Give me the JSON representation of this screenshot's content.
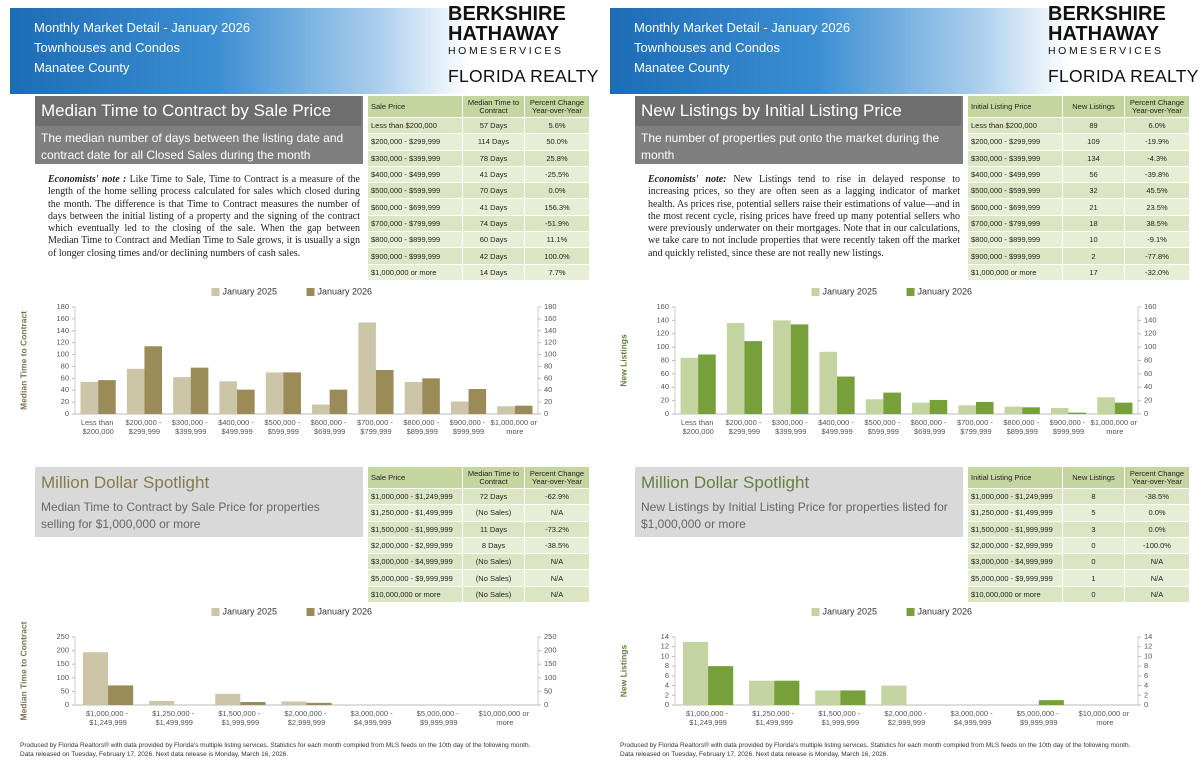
{
  "pages": [
    {
      "header": {
        "lines": [
          "Monthly Market Detail - January 2026",
          "Townhouses and Condos",
          "Manatee County"
        ],
        "logo": [
          "BERKSHIRE",
          "HATHAWAY",
          "HOMESERVICES",
          "FLORIDA REALTY"
        ]
      },
      "section": {
        "title": "Median Time to Contract by Sale Price",
        "subtitle": "The median number of days between the listing date and contract date for all Closed Sales during the month",
        "note_label": "Economists' note :",
        "note": "Like Time to Sale, Time to Contract is a measure of the length of the home selling process calculated for sales which closed during the month. The difference is that Time to Contract measures the number of days between the initial listing of a property and the signing of the contract which eventually led to the closing of the sale. When the gap between Median Time to Contract and Median Time to Sale grows, it is usually a sign of longer closing times and/or declining numbers of cash sales."
      },
      "table": {
        "columns": [
          "Sale Price",
          "Median Time to Contract",
          "Percent Change Year-over-Year"
        ],
        "rows": [
          [
            "Less than $200,000",
            "57 Days",
            "5.6%"
          ],
          [
            "$200,000 - $299,999",
            "114 Days",
            "50.0%"
          ],
          [
            "$300,000 - $399,999",
            "78 Days",
            "25.8%"
          ],
          [
            "$400,000 - $499,999",
            "41 Days",
            "-25.5%"
          ],
          [
            "$500,000 - $599,999",
            "70 Days",
            "0.0%"
          ],
          [
            "$600,000 - $699,999",
            "41 Days",
            "156.3%"
          ],
          [
            "$700,000 - $799,999",
            "74 Days",
            "-51.9%"
          ],
          [
            "$800,000 - $899,999",
            "60 Days",
            "11.1%"
          ],
          [
            "$900,000 - $999,999",
            "42 Days",
            "100.0%"
          ],
          [
            "$1,000,000 or more",
            "14 Days",
            "7.7%"
          ]
        ]
      },
      "spotlight": {
        "title": "Million Dollar Spotlight",
        "subtitle": "Median Time to Contract by Sale Price for properties selling for $1,000,000 or more"
      },
      "spotlight_table": {
        "columns": [
          "Sale Price",
          "Median Time to Contract",
          "Percent Change Year-over-Year"
        ],
        "rows": [
          [
            "$1,000,000 - $1,249,999",
            "72 Days",
            "-62.9%"
          ],
          [
            "$1,250,000 - $1,499,999",
            "(No Sales)",
            "N/A"
          ],
          [
            "$1,500,000 - $1,999,999",
            "11 Days",
            "-73.2%"
          ],
          [
            "$2,000,000 - $2,999,999",
            "8 Days",
            "-38.5%"
          ],
          [
            "$3,000,000 - $4,999,999",
            "(No Sales)",
            "N/A"
          ],
          [
            "$5,000,000 - $9,999,999",
            "(No Sales)",
            "N/A"
          ],
          [
            "$10,000,000 or more",
            "(No Sales)",
            "N/A"
          ]
        ]
      },
      "footer": [
        "Produced by Florida Realtors® with data provided by Florida's multiple listing services. Statistics for each month compiled from MLS feeds on the 10th day of the following month.",
        "Data released on Tuesday, February 17, 2026. Next data release is Monday, March 16, 2026."
      ]
    },
    {
      "header": {
        "lines": [
          "Monthly Market Detail - January 2026",
          "Townhouses and Condos",
          "Manatee County"
        ],
        "logo": [
          "BERKSHIRE",
          "HATHAWAY",
          "HOMESERVICES",
          "FLORIDA REALTY"
        ]
      },
      "section": {
        "title": "New Listings by Initial Listing Price",
        "subtitle": "The number of properties put onto the market during the month",
        "note_label": "Economists' note:",
        "note": "New Listings tend to rise in delayed response to increasing prices, so they are often seen as a lagging indicator of market health. As prices rise, potential sellers raise their estimations of value—and in the most recent cycle, rising prices have freed up many potential sellers who were previously underwater on their mortgages. Note that in our calculations, we take care to not include properties that were recently taken off the market and quickly relisted, since these are not really new listings."
      },
      "table": {
        "columns": [
          "Initial Listing Price",
          "New Listings",
          "Percent Change Year-over-Year"
        ],
        "rows": [
          [
            "Less than $200,000",
            "89",
            "6.0%"
          ],
          [
            "$200,000 - $299,999",
            "109",
            "-19.9%"
          ],
          [
            "$300,000 - $399,999",
            "134",
            "-4.3%"
          ],
          [
            "$400,000 - $499,999",
            "56",
            "-39.8%"
          ],
          [
            "$500,000 - $599,999",
            "32",
            "45.5%"
          ],
          [
            "$600,000 - $699,999",
            "21",
            "23.5%"
          ],
          [
            "$700,000 - $799,999",
            "18",
            "38.5%"
          ],
          [
            "$800,000 - $899,999",
            "10",
            "-9.1%"
          ],
          [
            "$900,000 - $999,999",
            "2",
            "-77.8%"
          ],
          [
            "$1,000,000 or more",
            "17",
            "-32.0%"
          ]
        ]
      },
      "spotlight": {
        "title": "Million Dollar Spotlight",
        "subtitle": "New Listings by Initial Listing Price for properties listed for $1,000,000 or more"
      },
      "spotlight_table": {
        "columns": [
          "Initial Listing Price",
          "New Listings",
          "Percent Change Year-over-Year"
        ],
        "rows": [
          [
            "$1,000,000 - $1,249,999",
            "8",
            "-38.5%"
          ],
          [
            "$1,250,000 - $1,499,999",
            "5",
            "0.0%"
          ],
          [
            "$1,500,000 - $1,999,999",
            "3",
            "0.0%"
          ],
          [
            "$2,000,000 - $2,999,999",
            "0",
            "-100.0%"
          ],
          [
            "$3,000,000 - $4,999,999",
            "0",
            "N/A"
          ],
          [
            "$5,000,000 - $9,999,999",
            "1",
            "N/A"
          ],
          [
            "$10,000,000 or more",
            "0",
            "N/A"
          ]
        ]
      },
      "footer": [
        "Produced by Florida Realtors® with data provided by Florida's multiple listing services. Statistics for each month compiled from MLS feeds on the 10th day of the following month.",
        "Data released on Tuesday, February 17, 2026. Next data release is Monday, March 16, 2026."
      ]
    }
  ],
  "chart_data": [
    {
      "type": "bar",
      "y_label": "Median Time to Contract",
      "categories": [
        "Less than $200,000",
        "$200,000 - $299,999",
        "$300,000 - $399,999",
        "$400,000 - $499,999",
        "$500,000 - $599,999",
        "$600,000 - $699,999",
        "$700,000 - $799,999",
        "$800,000 - $899,999",
        "$900,000 - $999,999",
        "$1,000,000 or more"
      ],
      "series": [
        {
          "name": "January 2025",
          "color": "#cdc5a8",
          "values": [
            54,
            76,
            62,
            55,
            70,
            16,
            154,
            54,
            21,
            13
          ]
        },
        {
          "name": "January 2026",
          "color": "#9b8b58",
          "values": [
            57,
            114,
            78,
            41,
            70,
            41,
            74,
            60,
            42,
            14
          ]
        }
      ],
      "ylim": [
        0,
        180
      ],
      "yticks": [
        0,
        20,
        40,
        60,
        80,
        100,
        120,
        140,
        160,
        180
      ],
      "y2lim": [
        0,
        180
      ],
      "y2ticks": [
        0,
        20,
        40,
        60,
        80,
        100,
        120,
        140,
        160,
        180
      ],
      "grid": false
    },
    {
      "type": "bar",
      "y_label": "New Listings",
      "categories": [
        "Less than $200,000",
        "$200,000 - $299,999",
        "$300,000 - $399,999",
        "$400,000 - $499,999",
        "$500,000 - $599,999",
        "$600,000 - $699,999",
        "$700,000 - $799,999",
        "$800,000 - $899,999",
        "$900,000 - $999,999",
        "$1,000,000 or more"
      ],
      "series": [
        {
          "name": "January 2025",
          "color": "#c3d4a0",
          "values": [
            84,
            136,
            140,
            93,
            22,
            17,
            13,
            11,
            9,
            25
          ]
        },
        {
          "name": "January 2026",
          "color": "#77a03a",
          "values": [
            89,
            109,
            134,
            56,
            32,
            21,
            18,
            10,
            2,
            17
          ]
        }
      ],
      "ylim": [
        0,
        160
      ],
      "yticks": [
        0,
        20,
        40,
        60,
        80,
        100,
        120,
        140,
        160
      ],
      "y2lim": [
        0,
        160
      ],
      "y2ticks": [
        0,
        20,
        40,
        60,
        80,
        100,
        120,
        140,
        160
      ],
      "grid": false
    },
    {
      "type": "bar",
      "y_label": "Median Time to Contract",
      "categories": [
        "$1,000,000 - $1,249,999",
        "$1,250,000 - $1,499,999",
        "$1,500,000 - $1,999,999",
        "$2,000,000 - $2,999,999",
        "$3,000,000 - $4,999,999",
        "$5,000,000 - $9,999,999",
        "$10,000,000 or more"
      ],
      "series": [
        {
          "name": "January 2025",
          "color": "#cdc5a8",
          "values": [
            194,
            15,
            41,
            13,
            null,
            null,
            null
          ]
        },
        {
          "name": "January 2026",
          "color": "#9b8b58",
          "values": [
            72,
            null,
            11,
            8,
            null,
            null,
            null
          ]
        }
      ],
      "ylim": [
        0,
        250
      ],
      "yticks": [
        0,
        50,
        100,
        150,
        200,
        250
      ],
      "y2lim": [
        0,
        250
      ],
      "y2ticks": [
        0,
        50,
        100,
        150,
        200,
        250
      ],
      "grid": false
    },
    {
      "type": "bar",
      "y_label": "New Listings",
      "categories": [
        "$1,000,000 - $1,249,999",
        "$1,250,000 - $1,499,999",
        "$1,500,000 - $1,999,999",
        "$2,000,000 - $2,999,999",
        "$3,000,000 - $4,999,999",
        "$5,000,000 - $9,999,999",
        "$10,000,000 or more"
      ],
      "series": [
        {
          "name": "January 2025",
          "color": "#c3d4a0",
          "values": [
            13,
            5,
            3,
            4,
            0,
            0,
            0
          ]
        },
        {
          "name": "January 2026",
          "color": "#77a03a",
          "values": [
            8,
            5,
            3,
            0,
            0,
            1,
            0
          ]
        }
      ],
      "ylim": [
        0,
        14
      ],
      "yticks": [
        0,
        2,
        4,
        6,
        8,
        10,
        12,
        14
      ],
      "y2lim": [
        0,
        14
      ],
      "y2ticks": [
        0,
        2,
        4,
        6,
        8,
        10,
        12,
        14
      ],
      "grid": false
    }
  ]
}
